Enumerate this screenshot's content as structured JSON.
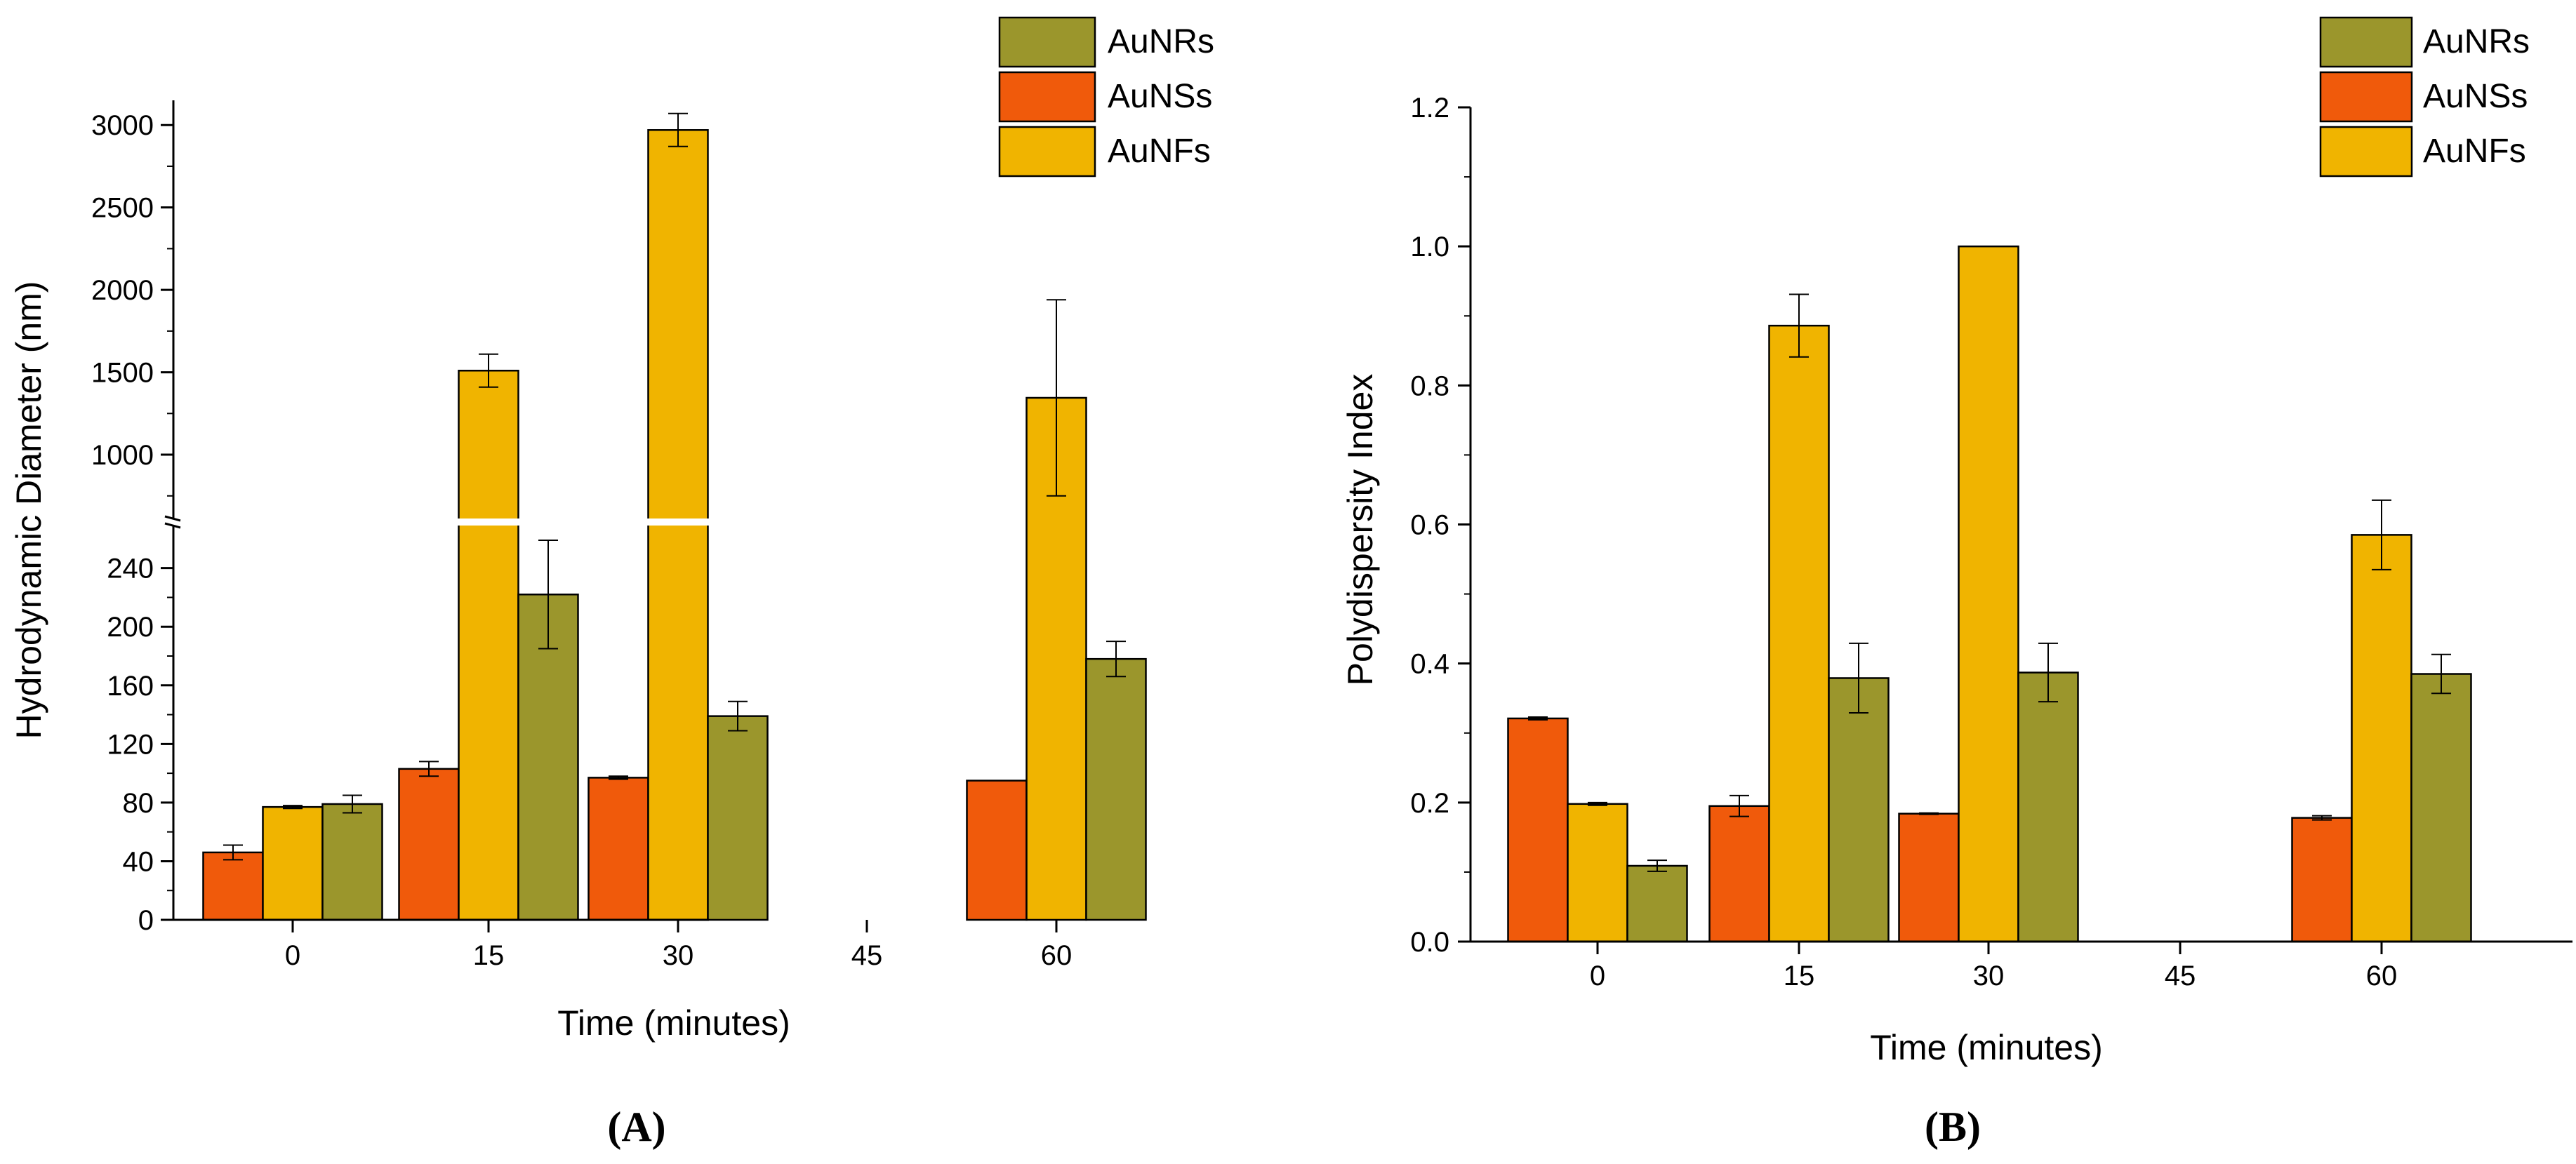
{
  "chart_data": [
    {
      "panel_label": "(A)",
      "type": "bar",
      "categories": [
        "0",
        "15",
        "30",
        "45",
        "60"
      ],
      "xlabel": "Time (minutes)",
      "ylabel": "Hydrodynamic Diameter (nm)",
      "axis_break": {
        "lower_range": [
          0,
          270
        ],
        "upper_range": [
          600,
          3150
        ]
      },
      "yticks_lower": [
        0,
        40,
        80,
        120,
        160,
        200,
        240
      ],
      "yticks_upper": [
        1000,
        1500,
        2000,
        2500,
        3000
      ],
      "legend_position": "top-right",
      "series": [
        {
          "name": "AuNSs",
          "color": "#f05a0b",
          "values": [
            46,
            103,
            97,
            null,
            95
          ],
          "errors": [
            5,
            5,
            1,
            null,
            0
          ]
        },
        {
          "name": "AuNFs",
          "color": "#f0b400",
          "values": [
            77,
            1510,
            2970,
            null,
            1345
          ],
          "errors": [
            1,
            100,
            100,
            null,
            595
          ]
        },
        {
          "name": "AuNRs",
          "color": "#9b962c",
          "values": [
            79,
            222,
            139,
            null,
            178
          ],
          "errors": [
            6,
            37,
            10,
            null,
            12
          ]
        }
      ],
      "legend_order": [
        "AuNRs",
        "AuNSs",
        "AuNFs"
      ]
    },
    {
      "panel_label": "(B)",
      "type": "bar",
      "categories": [
        "0",
        "15",
        "30",
        "45",
        "60"
      ],
      "xlabel": "Time (minutes)",
      "ylabel": "Polydispersity Index",
      "ylim": [
        0,
        1.2
      ],
      "yticks": [
        "0.0",
        "0.2",
        "0.4",
        "0.6",
        "0.8",
        "1.0",
        "1.2"
      ],
      "legend_position": "top-right",
      "series": [
        {
          "name": "AuNSs",
          "color": "#f05a0b",
          "values": [
            0.321,
            0.195,
            0.184,
            null,
            0.178
          ],
          "errors": [
            0.002,
            0.015,
            0.001,
            null,
            0.003
          ]
        },
        {
          "name": "AuNFs",
          "color": "#f0b400",
          "values": [
            0.198,
            0.886,
            1.0,
            null,
            0.585
          ],
          "errors": [
            0.002,
            0.045,
            0,
            null,
            0.05
          ]
        },
        {
          "name": "AuNRs",
          "color": "#9b962c",
          "values": [
            0.109,
            0.379,
            0.387,
            null,
            0.385
          ],
          "errors": [
            0.008,
            0.05,
            0.042,
            null,
            0.028
          ]
        }
      ],
      "legend_order": [
        "AuNRs",
        "AuNSs",
        "AuNFs"
      ]
    }
  ]
}
